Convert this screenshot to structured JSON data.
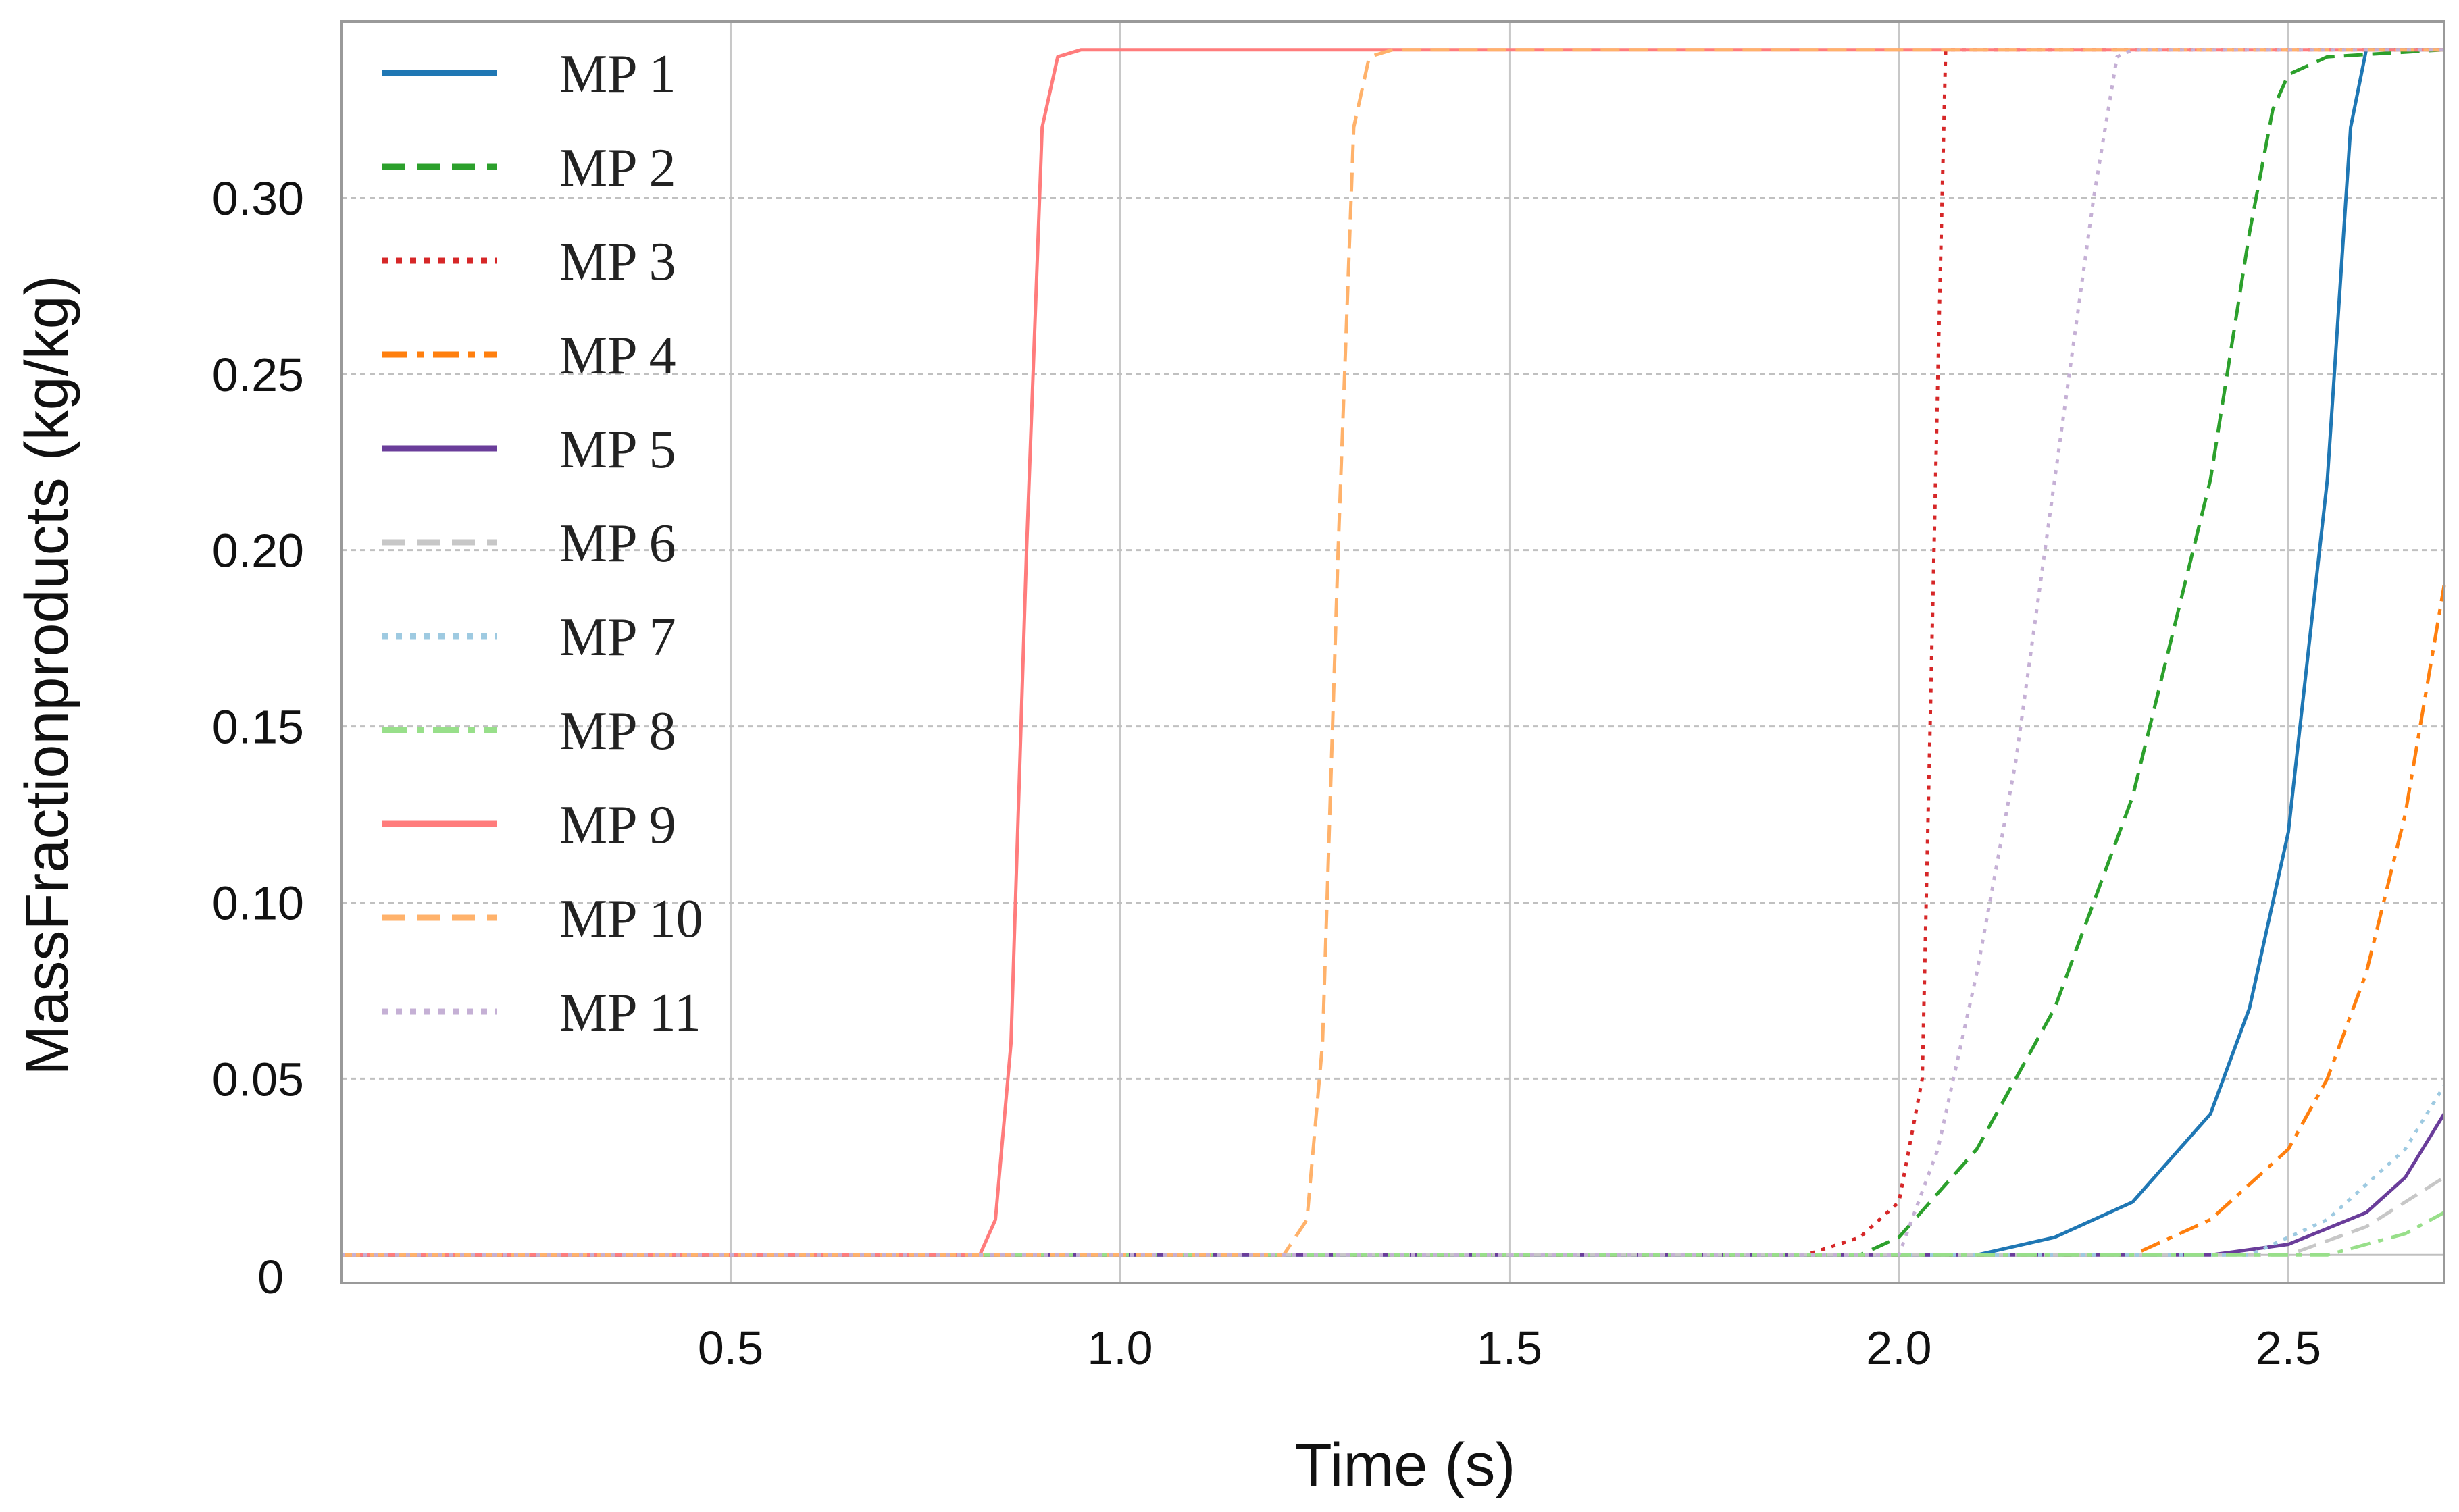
{
  "chart_data": {
    "type": "line",
    "title": "",
    "xlabel": "Time (s)",
    "ylabel": "MassFractionproducts (kg/kg)",
    "xlim": [
      0,
      2.7
    ],
    "ylim": [
      -0.008,
      0.35
    ],
    "xticks": [
      0.5,
      1.0,
      1.5,
      2.0,
      2.5
    ],
    "xtick_labels": [
      "0.5",
      "1.0",
      "1.5",
      "2.0",
      "2.5"
    ],
    "yticks": [
      0.05,
      0.1,
      0.15,
      0.2,
      0.25,
      0.3
    ],
    "ytick_labels": [
      "0.05",
      "0.10",
      "0.15",
      "0.20",
      "0.25",
      "0.30"
    ],
    "y_origin_label": "0",
    "grid": true,
    "legend_position": "top-left",
    "series": [
      {
        "name": "MP 1",
        "color": "#1f77b4",
        "dash": "solid",
        "x": [
          0,
          2.1,
          2.2,
          2.3,
          2.4,
          2.45,
          2.5,
          2.55,
          2.58,
          2.6,
          2.7
        ],
        "y": [
          0,
          0,
          0.005,
          0.015,
          0.04,
          0.07,
          0.12,
          0.22,
          0.32,
          0.342,
          0.342
        ]
      },
      {
        "name": "MP 2",
        "color": "#2ca02c",
        "dash": "dashed",
        "x": [
          0,
          1.95,
          2.0,
          2.1,
          2.2,
          2.3,
          2.4,
          2.45,
          2.48,
          2.5,
          2.55,
          2.7
        ],
        "y": [
          0,
          0,
          0.005,
          0.03,
          0.07,
          0.13,
          0.22,
          0.29,
          0.325,
          0.335,
          0.34,
          0.342
        ]
      },
      {
        "name": "MP 3",
        "color": "#d62728",
        "dash": "dotted",
        "x": [
          0,
          1.88,
          1.95,
          2.0,
          2.03,
          2.05,
          2.06,
          2.7
        ],
        "y": [
          0,
          0,
          0.005,
          0.015,
          0.05,
          0.25,
          0.342,
          0.342
        ]
      },
      {
        "name": "MP 4",
        "color": "#ff7f0e",
        "dash": "dashdot",
        "x": [
          0,
          2.3,
          2.4,
          2.5,
          2.55,
          2.6,
          2.65,
          2.7
        ],
        "y": [
          0,
          0,
          0.01,
          0.03,
          0.05,
          0.08,
          0.125,
          0.19
        ]
      },
      {
        "name": "MP 5",
        "color": "#6a3d9a",
        "dash": "solid",
        "x": [
          0,
          2.4,
          2.5,
          2.6,
          2.65,
          2.7
        ],
        "y": [
          0,
          0,
          0.003,
          0.012,
          0.022,
          0.04
        ]
      },
      {
        "name": "MP 6",
        "color": "#c7c7c7",
        "dash": "dashed",
        "x": [
          0,
          2.5,
          2.6,
          2.7
        ],
        "y": [
          0,
          0,
          0.008,
          0.022
        ]
      },
      {
        "name": "MP 7",
        "color": "#9ecae1",
        "dash": "dotted",
        "x": [
          0,
          2.45,
          2.55,
          2.65,
          2.7
        ],
        "y": [
          0,
          0,
          0.01,
          0.03,
          0.048
        ]
      },
      {
        "name": "MP 8",
        "color": "#98df8a",
        "dash": "dashdot",
        "x": [
          0,
          2.55,
          2.65,
          2.7
        ],
        "y": [
          0,
          0,
          0.006,
          0.012
        ]
      },
      {
        "name": "MP 9",
        "color": "#ff7c7c",
        "dash": "solid",
        "x": [
          0,
          0.82,
          0.84,
          0.86,
          0.88,
          0.9,
          0.92,
          0.95,
          2.7
        ],
        "y": [
          0,
          0,
          0.01,
          0.06,
          0.2,
          0.32,
          0.34,
          0.342,
          0.342
        ]
      },
      {
        "name": "MP 10",
        "color": "#ffb26b",
        "dash": "dashed",
        "x": [
          0,
          1.21,
          1.24,
          1.26,
          1.28,
          1.3,
          1.32,
          1.35,
          2.7
        ],
        "y": [
          0,
          0,
          0.01,
          0.06,
          0.2,
          0.32,
          0.34,
          0.342,
          0.342
        ]
      },
      {
        "name": "MP 11",
        "color": "#c5b0d5",
        "dash": "dotted",
        "x": [
          0,
          2.0,
          2.05,
          2.1,
          2.15,
          2.2,
          2.25,
          2.28,
          2.3,
          2.7
        ],
        "y": [
          0,
          0,
          0.03,
          0.08,
          0.14,
          0.22,
          0.3,
          0.34,
          0.342,
          0.342
        ]
      }
    ]
  }
}
